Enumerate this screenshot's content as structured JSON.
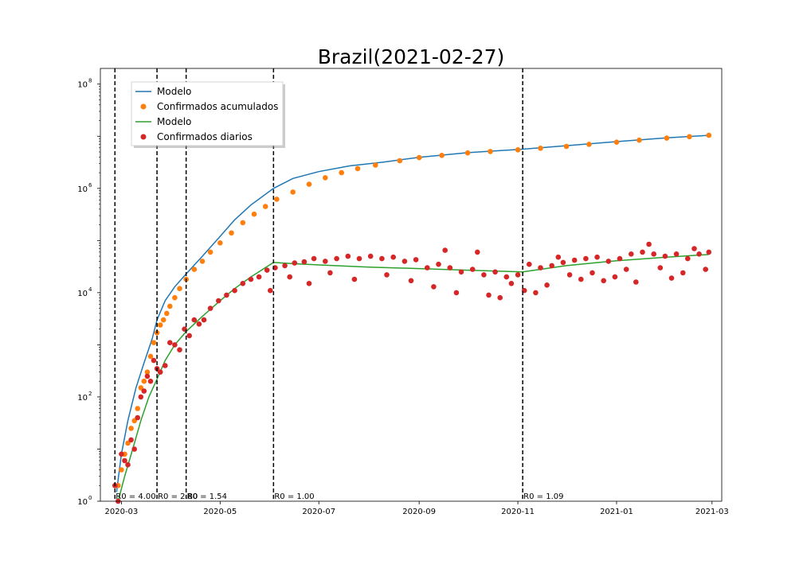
{
  "chart_data": {
    "type": "scatter",
    "title": "Brazil(2021-02-27)",
    "xlabel": "",
    "ylabel": "",
    "x_axis": {
      "type": "date",
      "range": [
        "2020-02-17",
        "2021-03-07"
      ],
      "ticks": [
        {
          "date": "2020-03-01",
          "label": "2020-03"
        },
        {
          "date": "2020-05-01",
          "label": "2020-05"
        },
        {
          "date": "2020-07-01",
          "label": "2020-07"
        },
        {
          "date": "2020-09-01",
          "label": "2020-09"
        },
        {
          "date": "2020-11-01",
          "label": "2020-11"
        },
        {
          "date": "2021-01-01",
          "label": "2021-01"
        },
        {
          "date": "2021-03-01",
          "label": "2021-03"
        }
      ]
    },
    "y_axis": {
      "scale": "log",
      "range": [
        1,
        200000000
      ],
      "ticks": [
        {
          "value": 1,
          "base": "10",
          "exp": "0"
        },
        {
          "value": 100,
          "base": "10",
          "exp": "2"
        },
        {
          "value": 10000,
          "base": "10",
          "exp": "4"
        },
        {
          "value": 1000000,
          "base": "10",
          "exp": "6"
        },
        {
          "value": 100000000,
          "base": "10",
          "exp": "8"
        }
      ]
    },
    "grid": false,
    "legend": {
      "position": "top-left",
      "entries": [
        {
          "label": "Modelo",
          "kind": "line",
          "color": "#1f77b4"
        },
        {
          "label": "Confirmados acumulados",
          "kind": "marker",
          "color": "#ff7f0e"
        },
        {
          "label": "Modelo",
          "kind": "line",
          "color": "#2ca02c"
        },
        {
          "label": "Confirmados diarios",
          "kind": "marker",
          "color": "#d62728"
        }
      ]
    },
    "change_points": [
      {
        "date": "2020-02-26",
        "label": "R0 = 4.00"
      },
      {
        "date": "2020-03-23",
        "label": "R0 = 2.80"
      },
      {
        "date": "2020-04-10",
        "label": "R0 = 1.54"
      },
      {
        "date": "2020-06-03",
        "label": "R0 = 1.00"
      },
      {
        "date": "2020-11-04",
        "label": "R0 = 1.09"
      }
    ],
    "series": [
      {
        "name": "Modelo",
        "kind": "line",
        "color": "#1f77b4",
        "points": [
          [
            "2020-02-27",
            1.5
          ],
          [
            "2020-03-01",
            8
          ],
          [
            "2020-03-05",
            35
          ],
          [
            "2020-03-10",
            150
          ],
          [
            "2020-03-15",
            450
          ],
          [
            "2020-03-20",
            1300
          ],
          [
            "2020-03-23",
            3000
          ],
          [
            "2020-03-28",
            7000
          ],
          [
            "2020-04-03",
            13000
          ],
          [
            "2020-04-10",
            23000
          ],
          [
            "2020-04-20",
            50000
          ],
          [
            "2020-05-01",
            120000
          ],
          [
            "2020-05-10",
            250000
          ],
          [
            "2020-05-20",
            480000
          ],
          [
            "2020-06-03",
            1000000
          ],
          [
            "2020-06-15",
            1550000
          ],
          [
            "2020-07-01",
            2100000
          ],
          [
            "2020-07-20",
            2700000
          ],
          [
            "2020-08-10",
            3200000
          ],
          [
            "2020-09-01",
            3950000
          ],
          [
            "2020-10-01",
            4850000
          ],
          [
            "2020-11-04",
            5650000
          ],
          [
            "2020-12-01",
            6600000
          ],
          [
            "2021-01-01",
            7900000
          ],
          [
            "2021-02-01",
            9300000
          ],
          [
            "2021-02-27",
            10400000
          ]
        ]
      },
      {
        "name": "Confirmados acumulados",
        "kind": "scatter",
        "color": "#ff7f0e",
        "points": [
          [
            "2020-02-26",
            2
          ],
          [
            "2020-02-28",
            2
          ],
          [
            "2020-03-01",
            4
          ],
          [
            "2020-03-03",
            8
          ],
          [
            "2020-03-05",
            13
          ],
          [
            "2020-03-07",
            25
          ],
          [
            "2020-03-09",
            35
          ],
          [
            "2020-03-11",
            60
          ],
          [
            "2020-03-13",
            150
          ],
          [
            "2020-03-15",
            200
          ],
          [
            "2020-03-17",
            300
          ],
          [
            "2020-03-19",
            600
          ],
          [
            "2020-03-21",
            1100
          ],
          [
            "2020-03-23",
            1700
          ],
          [
            "2020-03-25",
            2400
          ],
          [
            "2020-03-27",
            3000
          ],
          [
            "2020-03-29",
            4000
          ],
          [
            "2020-03-31",
            5500
          ],
          [
            "2020-04-03",
            8000
          ],
          [
            "2020-04-06",
            12000
          ],
          [
            "2020-04-10",
            18000
          ],
          [
            "2020-04-15",
            28000
          ],
          [
            "2020-04-20",
            40000
          ],
          [
            "2020-04-25",
            60000
          ],
          [
            "2020-05-01",
            90000
          ],
          [
            "2020-05-08",
            140000
          ],
          [
            "2020-05-15",
            220000
          ],
          [
            "2020-05-22",
            320000
          ],
          [
            "2020-05-29",
            450000
          ],
          [
            "2020-06-05",
            620000
          ],
          [
            "2020-06-15",
            850000
          ],
          [
            "2020-06-25",
            1200000
          ],
          [
            "2020-07-05",
            1600000
          ],
          [
            "2020-07-15",
            2000000
          ],
          [
            "2020-07-25",
            2400000
          ],
          [
            "2020-08-05",
            2800000
          ],
          [
            "2020-08-20",
            3400000
          ],
          [
            "2020-09-01",
            3900000
          ],
          [
            "2020-09-15",
            4300000
          ],
          [
            "2020-10-01",
            4800000
          ],
          [
            "2020-10-15",
            5100000
          ],
          [
            "2020-11-01",
            5500000
          ],
          [
            "2020-11-15",
            5900000
          ],
          [
            "2020-12-01",
            6400000
          ],
          [
            "2020-12-15",
            7000000
          ],
          [
            "2021-01-01",
            7700000
          ],
          [
            "2021-01-15",
            8400000
          ],
          [
            "2021-02-01",
            9200000
          ],
          [
            "2021-02-15",
            9800000
          ],
          [
            "2021-02-27",
            10400000
          ]
        ]
      },
      {
        "name": "Modelo",
        "kind": "line",
        "color": "#2ca02c",
        "points": [
          [
            "2020-02-28",
            1
          ],
          [
            "2020-03-03",
            3
          ],
          [
            "2020-03-08",
            10
          ],
          [
            "2020-03-13",
            35
          ],
          [
            "2020-03-18",
            100
          ],
          [
            "2020-03-23",
            220
          ],
          [
            "2020-03-28",
            500
          ],
          [
            "2020-04-03",
            1000
          ],
          [
            "2020-04-10",
            1800
          ],
          [
            "2020-04-20",
            3500
          ],
          [
            "2020-05-01",
            7000
          ],
          [
            "2020-05-10",
            12000
          ],
          [
            "2020-05-20",
            20000
          ],
          [
            "2020-06-03",
            38000
          ],
          [
            "2020-06-15",
            36000
          ],
          [
            "2020-07-01",
            34000
          ],
          [
            "2020-08-01",
            31000
          ],
          [
            "2020-09-01",
            29000
          ],
          [
            "2020-10-01",
            27000
          ],
          [
            "2020-11-04",
            25000
          ],
          [
            "2020-12-01",
            33000
          ],
          [
            "2021-01-01",
            41000
          ],
          [
            "2021-02-01",
            48000
          ],
          [
            "2021-02-27",
            54000
          ]
        ]
      },
      {
        "name": "Confirmados diarios",
        "kind": "scatter",
        "color": "#d62728",
        "points": [
          [
            "2020-02-26",
            2
          ],
          [
            "2020-02-28",
            1
          ],
          [
            "2020-03-01",
            8
          ],
          [
            "2020-03-03",
            6
          ],
          [
            "2020-03-05",
            5
          ],
          [
            "2020-03-07",
            15
          ],
          [
            "2020-03-09",
            10
          ],
          [
            "2020-03-11",
            40
          ],
          [
            "2020-03-13",
            100
          ],
          [
            "2020-03-15",
            130
          ],
          [
            "2020-03-17",
            250
          ],
          [
            "2020-03-19",
            200
          ],
          [
            "2020-03-21",
            500
          ],
          [
            "2020-03-23",
            350
          ],
          [
            "2020-03-25",
            300
          ],
          [
            "2020-03-28",
            400
          ],
          [
            "2020-03-31",
            1100
          ],
          [
            "2020-04-03",
            1000
          ],
          [
            "2020-04-06",
            800
          ],
          [
            "2020-04-09",
            2000
          ],
          [
            "2020-04-12",
            1500
          ],
          [
            "2020-04-15",
            3000
          ],
          [
            "2020-04-18",
            2500
          ],
          [
            "2020-04-21",
            3000
          ],
          [
            "2020-04-25",
            5000
          ],
          [
            "2020-04-30",
            7000
          ],
          [
            "2020-05-05",
            9000
          ],
          [
            "2020-05-10",
            11000
          ],
          [
            "2020-05-15",
            15000
          ],
          [
            "2020-05-20",
            18000
          ],
          [
            "2020-05-25",
            20000
          ],
          [
            "2020-05-30",
            27000
          ],
          [
            "2020-06-04",
            30000
          ],
          [
            "2020-06-10",
            33000
          ],
          [
            "2020-06-16",
            37000
          ],
          [
            "2020-06-22",
            39000
          ],
          [
            "2020-06-28",
            45000
          ],
          [
            "2020-07-05",
            40000
          ],
          [
            "2020-07-12",
            45000
          ],
          [
            "2020-07-19",
            50000
          ],
          [
            "2020-07-26",
            45000
          ],
          [
            "2020-08-02",
            50000
          ],
          [
            "2020-08-09",
            45000
          ],
          [
            "2020-08-16",
            48000
          ],
          [
            "2020-08-23",
            40000
          ],
          [
            "2020-08-30",
            43000
          ],
          [
            "2020-09-06",
            30000
          ],
          [
            "2020-09-13",
            35000
          ],
          [
            "2020-09-20",
            30000
          ],
          [
            "2020-09-27",
            25000
          ],
          [
            "2020-10-04",
            28000
          ],
          [
            "2020-10-11",
            22000
          ],
          [
            "2020-10-18",
            25000
          ],
          [
            "2020-10-25",
            20000
          ],
          [
            "2020-11-01",
            22000
          ],
          [
            "2020-11-08",
            35000
          ],
          [
            "2020-11-15",
            30000
          ],
          [
            "2020-11-22",
            33000
          ],
          [
            "2020-11-29",
            38000
          ],
          [
            "2020-12-06",
            42000
          ],
          [
            "2020-12-13",
            45000
          ],
          [
            "2020-12-20",
            48000
          ],
          [
            "2020-12-27",
            40000
          ],
          [
            "2021-01-03",
            45000
          ],
          [
            "2021-01-10",
            55000
          ],
          [
            "2021-01-17",
            60000
          ],
          [
            "2021-01-24",
            55000
          ],
          [
            "2021-01-31",
            50000
          ],
          [
            "2021-02-07",
            55000
          ],
          [
            "2021-02-14",
            45000
          ],
          [
            "2021-02-21",
            55000
          ],
          [
            "2021-02-27",
            60000
          ],
          [
            "2020-06-01",
            11000
          ],
          [
            "2020-06-13",
            20000
          ],
          [
            "2020-06-25",
            15000
          ],
          [
            "2020-07-08",
            24000
          ],
          [
            "2020-07-23",
            18000
          ],
          [
            "2020-08-12",
            22000
          ],
          [
            "2020-08-27",
            17000
          ],
          [
            "2020-09-10",
            13000
          ],
          [
            "2020-09-17",
            65000
          ],
          [
            "2020-09-24",
            10000
          ],
          [
            "2020-10-07",
            60000
          ],
          [
            "2020-10-14",
            9000
          ],
          [
            "2020-10-21",
            8000
          ],
          [
            "2020-10-28",
            15000
          ],
          [
            "2020-11-05",
            11000
          ],
          [
            "2020-11-12",
            10000
          ],
          [
            "2020-11-19",
            14000
          ],
          [
            "2020-11-26",
            48000
          ],
          [
            "2020-12-03",
            22000
          ],
          [
            "2020-12-10",
            18000
          ],
          [
            "2020-12-17",
            24000
          ],
          [
            "2020-12-24",
            17000
          ],
          [
            "2020-12-31",
            20000
          ],
          [
            "2021-01-07",
            28000
          ],
          [
            "2021-01-13",
            16000
          ],
          [
            "2021-01-21",
            85000
          ],
          [
            "2021-01-28",
            30000
          ],
          [
            "2021-02-04",
            19000
          ],
          [
            "2021-02-11",
            24000
          ],
          [
            "2021-02-18",
            70000
          ],
          [
            "2021-02-25",
            28000
          ]
        ]
      }
    ]
  }
}
